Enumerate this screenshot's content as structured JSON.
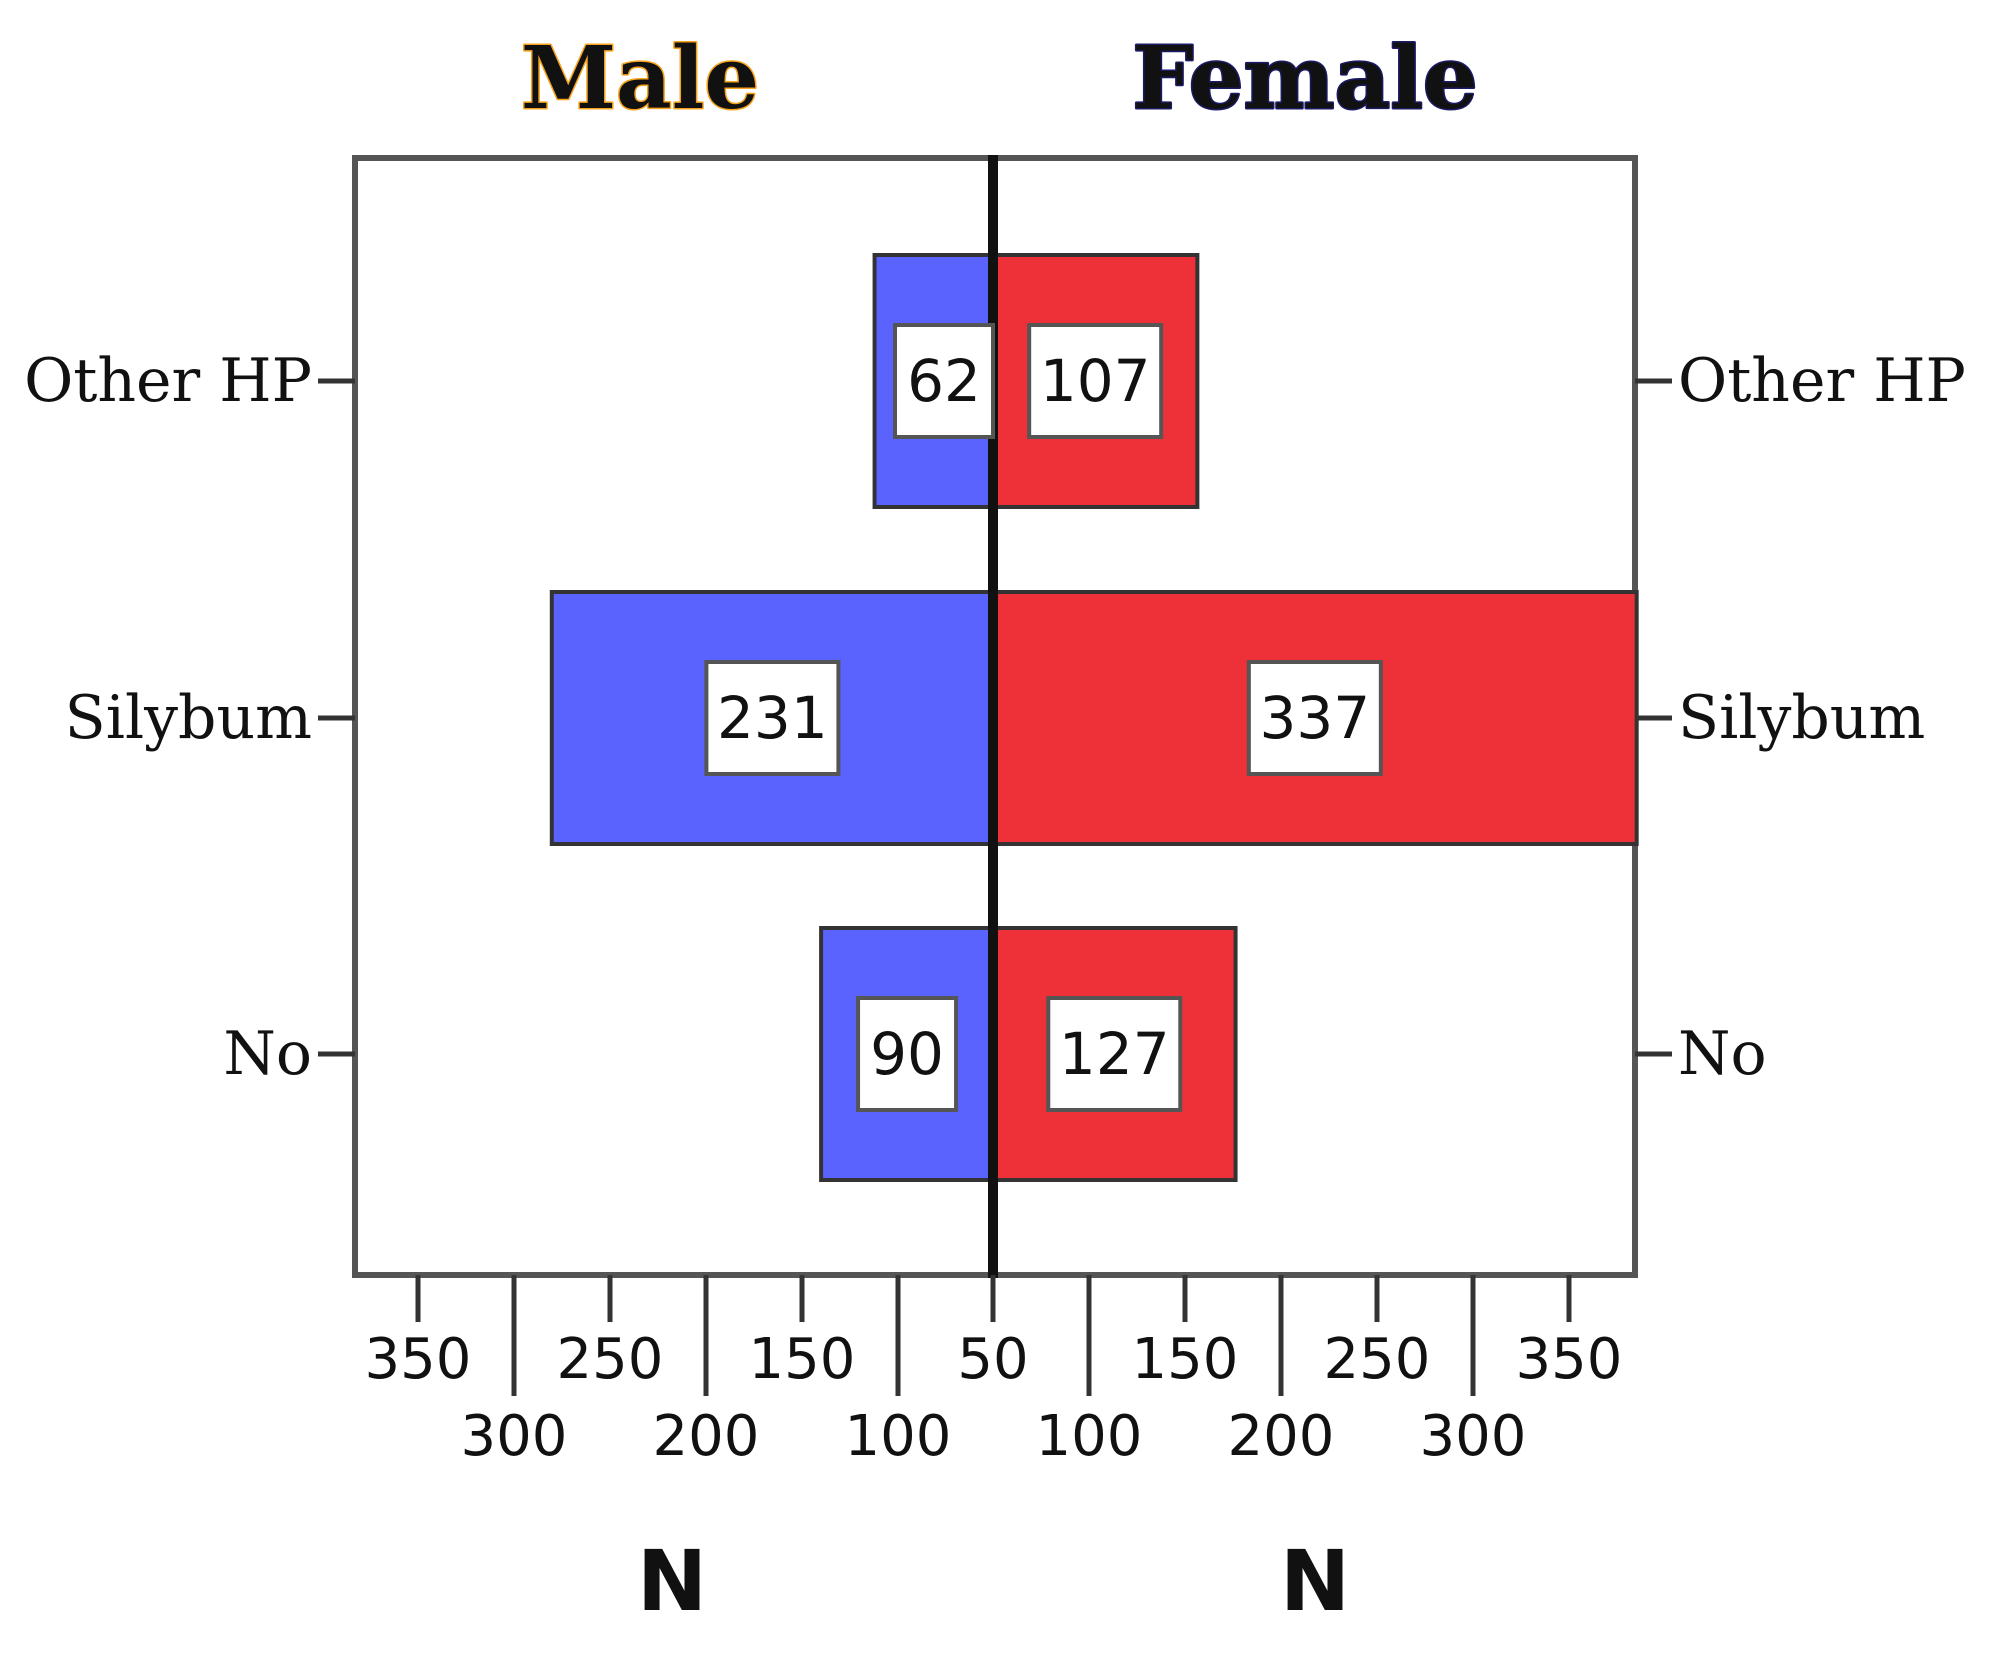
{
  "chart_data": {
    "type": "bar",
    "orientation": "horizontal-butterfly",
    "categories": [
      "Other HP",
      "Silybum",
      "No"
    ],
    "series": [
      {
        "name": "Male",
        "values": [
          62,
          231,
          90
        ],
        "color": "#5b63ff"
      },
      {
        "name": "Female",
        "values": [
          107,
          337,
          127
        ],
        "color": "#ee3138"
      }
    ],
    "panel_titles": {
      "left": "Male",
      "right": "Female"
    },
    "xlabel_left": "N",
    "xlabel_right": "N",
    "xlim": [
      0,
      400
    ],
    "ticks_upper": [
      "350",
      "250",
      "150",
      "50",
      "150",
      "250",
      "350"
    ],
    "ticks_lower": [
      "300",
      "200",
      "100",
      "100",
      "200",
      "300"
    ],
    "grid": false,
    "title_colors": {
      "male": "#f6a21c",
      "female": "#1a1a66"
    }
  }
}
